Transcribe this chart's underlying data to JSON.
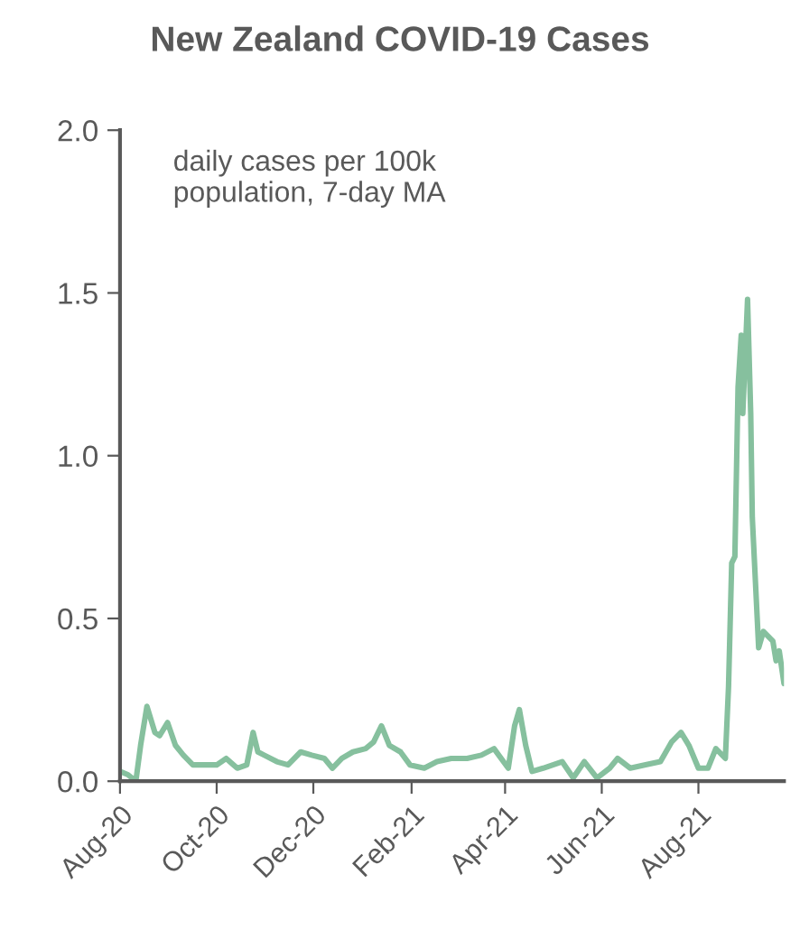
{
  "chart_data": {
    "type": "line",
    "title": "New Zealand COVID-19 Cases",
    "annotations": [
      "daily cases per 100k\npopulation, 7-day MA"
    ],
    "x": [
      "2020-08-01",
      "2020-08-06",
      "2020-08-11",
      "2020-08-14",
      "2020-08-18",
      "2020-08-23",
      "2020-08-26",
      "2020-08-31",
      "2020-09-05",
      "2020-09-10",
      "2020-09-16",
      "2020-09-24",
      "2020-10-01",
      "2020-10-07",
      "2020-10-14",
      "2020-10-20",
      "2020-10-24",
      "2020-10-27",
      "2020-10-31",
      "2020-11-08",
      "2020-11-15",
      "2020-11-23",
      "2020-11-30",
      "2020-12-08",
      "2020-12-13",
      "2020-12-19",
      "2020-12-26",
      "2021-01-03",
      "2021-01-08",
      "2021-01-13",
      "2021-01-18",
      "2021-01-25",
      "2021-01-31",
      "2021-02-09",
      "2021-02-17",
      "2021-02-26",
      "2021-03-08",
      "2021-03-17",
      "2021-03-25",
      "2021-04-03",
      "2021-04-07",
      "2021-04-10",
      "2021-04-14",
      "2021-04-18",
      "2021-04-25",
      "2021-05-07",
      "2021-05-14",
      "2021-05-21",
      "2021-05-29",
      "2021-06-06",
      "2021-06-11",
      "2021-06-19",
      "2021-06-28",
      "2021-07-08",
      "2021-07-15",
      "2021-07-21",
      "2021-07-26",
      "2021-08-01",
      "2021-08-07",
      "2021-08-12",
      "2021-08-18",
      "2021-08-20",
      "2021-08-22",
      "2021-08-24",
      "2021-08-26",
      "2021-08-28",
      "2021-08-29",
      "2021-09-01",
      "2021-09-03",
      "2021-09-04",
      "2021-09-08",
      "2021-09-11",
      "2021-09-17",
      "2021-09-19",
      "2021-09-21",
      "2021-09-24"
    ],
    "series": [
      {
        "color": "#86c09e",
        "values": [
          0.03,
          0.02,
          0.0,
          0.11,
          0.23,
          0.15,
          0.14,
          0.18,
          0.11,
          0.08,
          0.05,
          0.05,
          0.05,
          0.07,
          0.04,
          0.05,
          0.15,
          0.09,
          0.08,
          0.06,
          0.05,
          0.09,
          0.08,
          0.07,
          0.04,
          0.07,
          0.09,
          0.1,
          0.12,
          0.17,
          0.11,
          0.09,
          0.05,
          0.04,
          0.06,
          0.07,
          0.07,
          0.08,
          0.1,
          0.04,
          0.17,
          0.22,
          0.11,
          0.03,
          0.04,
          0.06,
          0.01,
          0.06,
          0.01,
          0.04,
          0.07,
          0.04,
          0.05,
          0.06,
          0.12,
          0.15,
          0.11,
          0.04,
          0.04,
          0.1,
          0.07,
          0.29,
          0.67,
          0.69,
          1.21,
          1.37,
          1.13,
          1.48,
          1.13,
          0.81,
          0.41,
          0.46,
          0.43,
          0.37,
          0.4,
          0.3
        ]
      }
    ],
    "xlim": [
      "2020-08-01",
      "2021-09-24"
    ],
    "xticks": [
      {
        "value": "2020-08-01",
        "label": "Aug-20"
      },
      {
        "value": "2020-10-01",
        "label": "Oct-20"
      },
      {
        "value": "2020-12-01",
        "label": "Dec-20"
      },
      {
        "value": "2021-02-01",
        "label": "Feb-21"
      },
      {
        "value": "2021-04-01",
        "label": "Apr-21"
      },
      {
        "value": "2021-06-01",
        "label": "Jun-21"
      },
      {
        "value": "2021-08-01",
        "label": "Aug-21"
      }
    ],
    "ylim": [
      0,
      2.0
    ],
    "yticks": [
      {
        "value": 0,
        "label": "0.0"
      },
      {
        "value": 0.5,
        "label": "0.5"
      },
      {
        "value": 1.0,
        "label": "1.0"
      },
      {
        "value": 1.5,
        "label": "1.5"
      },
      {
        "value": 2.0,
        "label": "2.0"
      }
    ],
    "marker": "none",
    "line_style": "solid"
  }
}
